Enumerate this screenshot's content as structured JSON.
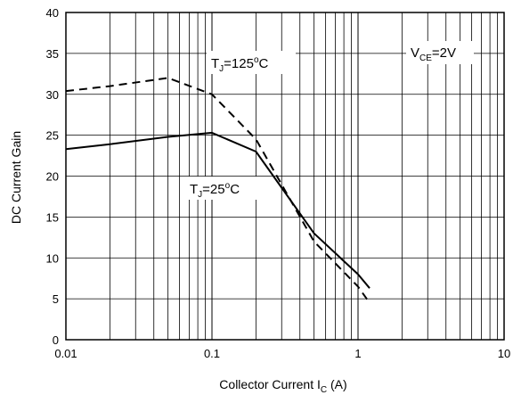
{
  "chart_data": {
    "type": "line",
    "xscale": "log",
    "xlim": [
      0.01,
      10
    ],
    "ylim": [
      0,
      40
    ],
    "x_ticks": [
      0.01,
      0.1,
      1,
      10
    ],
    "x_tick_labels": [
      "0.01",
      "0.1",
      "1",
      "10"
    ],
    "y_ticks": [
      0,
      5,
      10,
      15,
      20,
      25,
      30,
      35,
      40
    ],
    "y_tick_labels": [
      "0",
      "5",
      "10",
      "15",
      "20",
      "25",
      "30",
      "35",
      "40"
    ],
    "xlabel": {
      "main": "Collector Current I",
      "sub": "C",
      "unit": " (A)"
    },
    "ylabel": "DC Current Gain",
    "grid": true,
    "series": [
      {
        "name_parts": {
          "pre": "T",
          "sub": "J",
          "mid": "=125",
          "sup": "o",
          "post": "C"
        },
        "style": "dashed",
        "color": "#000000",
        "x": [
          0.01,
          0.02,
          0.05,
          0.1,
          0.2,
          0.5,
          1.0,
          1.2
        ],
        "y": [
          30.4,
          31.0,
          32.0,
          30.0,
          24.5,
          12.0,
          6.5,
          4.5
        ]
      },
      {
        "name_parts": {
          "pre": "T",
          "sub": "J",
          "mid": "=25",
          "sup": "o",
          "post": "C"
        },
        "style": "solid",
        "color": "#000000",
        "x": [
          0.01,
          0.02,
          0.05,
          0.1,
          0.2,
          0.5,
          1.0,
          1.2
        ],
        "y": [
          23.3,
          23.9,
          24.8,
          25.3,
          23.0,
          13.0,
          8.0,
          6.3
        ]
      }
    ],
    "condition_label": {
      "pre": "V",
      "sub": "CE",
      "post": "=2V"
    }
  }
}
